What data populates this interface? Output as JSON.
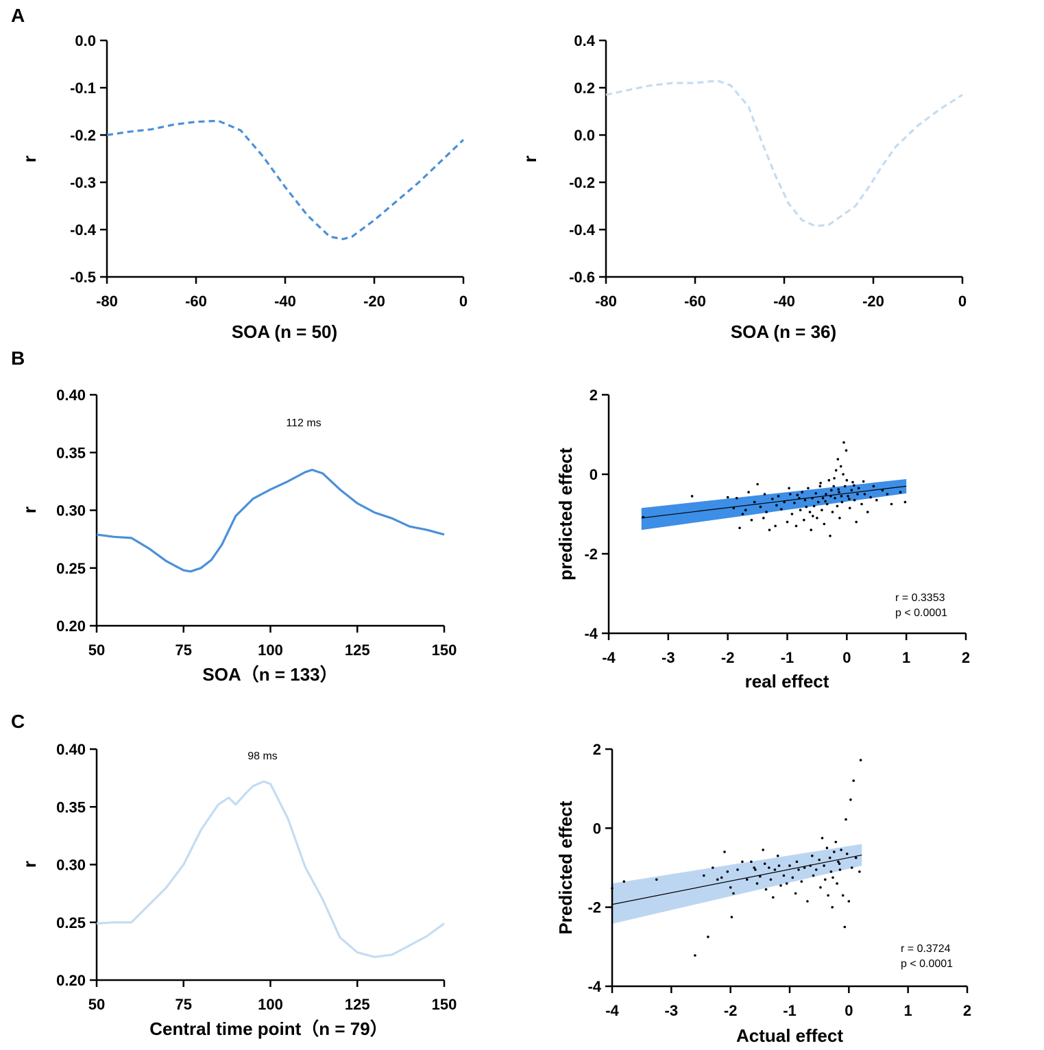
{
  "panels": {
    "a": "A",
    "b": "B",
    "c": "C"
  },
  "colors": {
    "medium_blue": "#4a90d9",
    "light_blue": "#c4dcf2",
    "band_blue": "#3d8ee6",
    "band_light": "#bcd6f2",
    "black": "#000000"
  },
  "chart_data": [
    {
      "id": "a-left",
      "type": "line",
      "dashed": true,
      "color": "#4a90d9",
      "xlabel": "SOA (n = 50)",
      "ylabel": "r",
      "xlim": [
        -80,
        0
      ],
      "ylim": [
        -0.5,
        0.0
      ],
      "xticks": [
        -80,
        -60,
        -40,
        -20,
        0
      ],
      "xtick_labels": [
        "-80",
        "-60",
        "-40",
        "-20",
        "0"
      ],
      "yticks": [
        -0.5,
        -0.4,
        -0.3,
        -0.2,
        -0.1,
        0.0
      ],
      "ytick_labels": [
        "-0.5",
        "-0.4",
        "-0.3",
        "-0.2",
        "-0.1",
        "0.0"
      ],
      "series": [
        {
          "name": "r",
          "x": [
            -80,
            -75,
            -70,
            -65,
            -60,
            -55,
            -50,
            -45,
            -40,
            -35,
            -30,
            -27,
            -25,
            -20,
            -15,
            -10,
            -5,
            0
          ],
          "y": [
            -0.2,
            -0.193,
            -0.188,
            -0.178,
            -0.172,
            -0.17,
            -0.19,
            -0.245,
            -0.31,
            -0.37,
            -0.415,
            -0.42,
            -0.415,
            -0.38,
            -0.34,
            -0.3,
            -0.255,
            -0.21
          ]
        }
      ]
    },
    {
      "id": "a-right",
      "type": "line",
      "dashed": true,
      "color": "#c4dcf2",
      "xlabel": "SOA (n = 36)",
      "ylabel": "r",
      "xlim": [
        -80,
        0
      ],
      "ylim": [
        -0.6,
        0.4
      ],
      "xticks": [
        -80,
        -60,
        -40,
        -20,
        0
      ],
      "xtick_labels": [
        "-80",
        "-60",
        "-40",
        "-20",
        "0"
      ],
      "yticks": [
        -0.6,
        -0.4,
        -0.2,
        0.0,
        0.2,
        0.4
      ],
      "ytick_labels": [
        "-0.6",
        "-0.4",
        "-0.2",
        "0.0",
        "0.2",
        "0.4"
      ],
      "series": [
        {
          "name": "r",
          "x": [
            -80,
            -75,
            -70,
            -65,
            -60,
            -55,
            -52,
            -48,
            -45,
            -42,
            -39,
            -36,
            -33,
            -30,
            -27,
            -24,
            -21,
            -18,
            -15,
            -10,
            -5,
            0
          ],
          "y": [
            0.17,
            0.19,
            0.21,
            0.22,
            0.22,
            0.23,
            0.21,
            0.12,
            -0.03,
            -0.17,
            -0.29,
            -0.36,
            -0.385,
            -0.38,
            -0.34,
            -0.3,
            -0.22,
            -0.13,
            -0.05,
            0.04,
            0.11,
            0.17
          ]
        }
      ]
    },
    {
      "id": "b-left",
      "type": "line",
      "dashed": false,
      "color": "#4a90d9",
      "xlabel": "SOA（n = 133）",
      "ylabel": "r",
      "xlim": [
        50,
        150
      ],
      "ylim": [
        0.2,
        0.4
      ],
      "xticks": [
        50,
        75,
        100,
        125,
        150
      ],
      "xtick_labels": [
        "50",
        "75",
        "100",
        "125",
        "150"
      ],
      "yticks": [
        0.2,
        0.25,
        0.3,
        0.35,
        0.4
      ],
      "ytick_labels": [
        "0.20",
        "0.25",
        "0.30",
        "0.35",
        "0.40"
      ],
      "annotations": [
        {
          "text": "112 ms",
          "x": 110,
          "y": 0.38
        }
      ],
      "series": [
        {
          "name": "r",
          "x": [
            50,
            55,
            60,
            65,
            70,
            75,
            77,
            80,
            83,
            86,
            90,
            95,
            100,
            105,
            110,
            112,
            115,
            120,
            125,
            130,
            135,
            140,
            145,
            150
          ],
          "y": [
            0.279,
            0.277,
            0.276,
            0.267,
            0.256,
            0.248,
            0.247,
            0.25,
            0.257,
            0.27,
            0.295,
            0.31,
            0.318,
            0.325,
            0.333,
            0.335,
            0.332,
            0.318,
            0.306,
            0.298,
            0.293,
            0.286,
            0.283,
            0.279
          ]
        }
      ]
    },
    {
      "id": "b-right",
      "type": "scatter",
      "color": "#000000",
      "band_color": "#3d8ee6",
      "xlabel": "real effect",
      "ylabel": "predicted effect",
      "xlim": [
        -4,
        2
      ],
      "ylim": [
        -4,
        2
      ],
      "xticks": [
        -4,
        -3,
        -2,
        -1,
        0,
        1,
        2
      ],
      "xtick_labels": [
        "-4",
        "-3",
        "-2",
        "-1",
        "0",
        "1",
        "2"
      ],
      "yticks": [
        -4,
        -2,
        0,
        2
      ],
      "ytick_labels": [
        "-4",
        "-2",
        "0",
        "2"
      ],
      "stats": {
        "r": "r = 0.3353",
        "p": "p < 0.0001"
      },
      "regression": {
        "x0": -3.45,
        "x1": 1.0,
        "y0": -1.1,
        "y1": -0.3,
        "band0": [
          -1.4,
          -0.85
        ],
        "band1": [
          -0.48,
          -0.12
        ]
      },
      "points": [
        [
          -3.42,
          -1.08
        ],
        [
          -2.6,
          -0.55
        ],
        [
          -2.0,
          -0.58
        ],
        [
          -1.9,
          -0.85
        ],
        [
          -1.8,
          -1.35
        ],
        [
          -1.7,
          -0.9
        ],
        [
          -1.65,
          -0.45
        ],
        [
          -1.55,
          -0.7
        ],
        [
          -1.5,
          -0.25
        ],
        [
          -1.45,
          -0.82
        ],
        [
          -1.4,
          -1.1
        ],
        [
          -1.35,
          -0.95
        ],
        [
          -1.3,
          -1.4
        ],
        [
          -1.25,
          -0.62
        ],
        [
          -1.2,
          -1.3
        ],
        [
          -1.15,
          -0.55
        ],
        [
          -1.1,
          -0.88
        ],
        [
          -1.05,
          -0.7
        ],
        [
          -1.0,
          -1.2
        ],
        [
          -0.95,
          -0.5
        ],
        [
          -0.92,
          -1.0
        ],
        [
          -0.88,
          -0.72
        ],
        [
          -0.85,
          -1.3
        ],
        [
          -0.8,
          -0.6
        ],
        [
          -0.78,
          -0.9
        ],
        [
          -0.75,
          -0.45
        ],
        [
          -0.72,
          -1.15
        ],
        [
          -0.7,
          -0.65
        ],
        [
          -0.65,
          -0.35
        ],
        [
          -0.62,
          -0.95
        ],
        [
          -0.6,
          -1.4
        ],
        [
          -0.58,
          -0.6
        ],
        [
          -0.55,
          -0.8
        ],
        [
          -0.52,
          -0.48
        ],
        [
          -0.5,
          -1.1
        ],
        [
          -0.48,
          -0.7
        ],
        [
          -0.45,
          -0.3
        ],
        [
          -0.42,
          -0.9
        ],
        [
          -0.4,
          -0.6
        ],
        [
          -0.38,
          -1.25
        ],
        [
          -0.35,
          -0.5
        ],
        [
          -0.33,
          -0.75
        ],
        [
          -0.3,
          -0.15
        ],
        [
          -0.28,
          -1.55
        ],
        [
          -0.26,
          -0.4
        ],
        [
          -0.24,
          -0.95
        ],
        [
          -0.22,
          -0.3
        ],
        [
          -0.2,
          -0.6
        ],
        [
          -0.18,
          0.1
        ],
        [
          -0.16,
          -0.8
        ],
        [
          -0.15,
          0.38
        ],
        [
          -0.13,
          -0.45
        ],
        [
          -0.12,
          -1.1
        ],
        [
          -0.1,
          0.2
        ],
        [
          -0.08,
          -0.7
        ],
        [
          -0.06,
          0.0
        ],
        [
          -0.05,
          0.8
        ],
        [
          -0.03,
          -0.3
        ],
        [
          -0.01,
          0.6
        ],
        [
          0.02,
          -0.55
        ],
        [
          0.05,
          -0.85
        ],
        [
          0.08,
          -0.4
        ],
        [
          0.1,
          -0.2
        ],
        [
          0.13,
          -0.65
        ],
        [
          0.16,
          -1.2
        ],
        [
          0.2,
          -0.35
        ],
        [
          0.25,
          -0.75
        ],
        [
          0.3,
          -0.5
        ],
        [
          0.35,
          -0.95
        ],
        [
          0.45,
          -0.3
        ],
        [
          0.6,
          -0.4
        ],
        [
          0.75,
          -0.75
        ],
        [
          0.9,
          -0.45
        ],
        [
          0.98,
          -0.7
        ],
        [
          -1.85,
          -0.6
        ],
        [
          -1.75,
          -1.0
        ],
        [
          -1.6,
          -1.15
        ],
        [
          -1.38,
          -0.5
        ],
        [
          -1.18,
          -0.78
        ],
        [
          -0.97,
          -0.35
        ],
        [
          -0.83,
          -0.52
        ],
        [
          -0.68,
          -0.82
        ],
        [
          -0.57,
          -1.05
        ],
        [
          -0.44,
          -0.22
        ],
        [
          -0.36,
          -0.68
        ],
        [
          -0.27,
          -0.55
        ],
        [
          -0.21,
          -0.1
        ],
        [
          -0.14,
          -0.38
        ],
        [
          -0.09,
          -0.55
        ],
        [
          0.0,
          -0.15
        ],
        [
          0.04,
          -0.62
        ],
        [
          0.12,
          -0.28
        ],
        [
          0.18,
          -0.5
        ],
        [
          0.28,
          -0.18
        ],
        [
          0.4,
          -0.58
        ],
        [
          0.5,
          -0.65
        ],
        [
          0.68,
          -0.5
        ]
      ]
    },
    {
      "id": "c-left",
      "type": "line",
      "dashed": false,
      "color": "#c4dcf2",
      "xlabel": "Central time point（n = 79）",
      "ylabel": "r",
      "xlim": [
        50,
        150
      ],
      "ylim": [
        0.2,
        0.4
      ],
      "xticks": [
        50,
        75,
        100,
        125,
        150
      ],
      "xtick_labels": [
        "50",
        "75",
        "100",
        "125",
        "150"
      ],
      "yticks": [
        0.2,
        0.25,
        0.3,
        0.35,
        0.4
      ],
      "ytick_labels": [
        "0.20",
        "0.25",
        "0.30",
        "0.35",
        "0.40"
      ],
      "annotations": [
        {
          "text": "98 ms",
          "x": 98,
          "y": 0.38
        }
      ],
      "series": [
        {
          "name": "r",
          "x": [
            50,
            55,
            60,
            65,
            70,
            75,
            80,
            85,
            88,
            90,
            93,
            95,
            98,
            100,
            105,
            110,
            115,
            120,
            125,
            130,
            135,
            140,
            145,
            150
          ],
          "y": [
            0.249,
            0.25,
            0.25,
            0.265,
            0.28,
            0.3,
            0.33,
            0.352,
            0.358,
            0.352,
            0.362,
            0.368,
            0.372,
            0.37,
            0.34,
            0.298,
            0.27,
            0.237,
            0.224,
            0.22,
            0.222,
            0.23,
            0.238,
            0.249
          ]
        }
      ]
    },
    {
      "id": "c-right",
      "type": "scatter",
      "color": "#000000",
      "band_color": "#bcd6f2",
      "xlabel": "Actual effect",
      "ylabel": "Predicted effect",
      "xlim": [
        -4,
        2
      ],
      "ylim": [
        -4,
        2
      ],
      "xticks": [
        -4,
        -3,
        -2,
        -1,
        0,
        1,
        2
      ],
      "xtick_labels": [
        "-4",
        "-3",
        "-2",
        "-1",
        "0",
        "1",
        "2"
      ],
      "yticks": [
        -4,
        -2,
        0,
        2
      ],
      "ytick_labels": [
        "-4",
        "-2",
        "0",
        "2"
      ],
      "stats": {
        "r": "r = 0.3724",
        "p": "p < 0.0001"
      },
      "regression": {
        "x0": -4.0,
        "x1": 0.22,
        "y0": -1.93,
        "y1": -0.68,
        "band0": [
          -2.42,
          -1.4
        ],
        "band1": [
          -0.95,
          -0.4
        ]
      },
      "points": [
        [
          -4.0,
          -1.52
        ],
        [
          -3.8,
          -1.35
        ],
        [
          -3.25,
          -1.3
        ],
        [
          -2.6,
          -3.22
        ],
        [
          -2.45,
          -1.2
        ],
        [
          -2.38,
          -2.75
        ],
        [
          -2.3,
          -1.0
        ],
        [
          -2.22,
          -1.3
        ],
        [
          -2.15,
          -1.25
        ],
        [
          -2.1,
          -0.6
        ],
        [
          -2.05,
          -1.1
        ],
        [
          -2.0,
          -1.5
        ],
        [
          -1.98,
          -2.25
        ],
        [
          -1.95,
          -1.65
        ],
        [
          -1.88,
          -1.05
        ],
        [
          -1.8,
          -0.85
        ],
        [
          -1.72,
          -1.3
        ],
        [
          -1.65,
          -0.85
        ],
        [
          -1.6,
          -1.0
        ],
        [
          -1.55,
          -1.4
        ],
        [
          -1.5,
          -1.22
        ],
        [
          -1.45,
          -0.55
        ],
        [
          -1.42,
          -0.9
        ],
        [
          -1.4,
          -1.55
        ],
        [
          -1.35,
          -1.0
        ],
        [
          -1.32,
          -1.3
        ],
        [
          -1.28,
          -1.75
        ],
        [
          -1.25,
          -1.05
        ],
        [
          -1.2,
          -0.7
        ],
        [
          -1.15,
          -1.45
        ],
        [
          -1.1,
          -1.2
        ],
        [
          -1.05,
          -1.4
        ],
        [
          -1.0,
          -0.95
        ],
        [
          -0.95,
          -1.25
        ],
        [
          -0.9,
          -1.65
        ],
        [
          -0.85,
          -1.05
        ],
        [
          -0.8,
          -1.35
        ],
        [
          -0.75,
          -1.0
        ],
        [
          -0.7,
          -1.85
        ],
        [
          -0.65,
          -0.95
        ],
        [
          -0.6,
          -1.2
        ],
        [
          -0.55,
          -1.05
        ],
        [
          -0.5,
          -0.8
        ],
        [
          -0.48,
          -1.5
        ],
        [
          -0.45,
          -0.25
        ],
        [
          -0.42,
          -0.95
        ],
        [
          -0.4,
          -1.3
        ],
        [
          -0.37,
          -0.5
        ],
        [
          -0.35,
          -1.7
        ],
        [
          -0.32,
          -0.75
        ],
        [
          -0.3,
          -1.1
        ],
        [
          -0.28,
          -2.0
        ],
        [
          -0.25,
          -0.6
        ],
        [
          -0.22,
          -0.35
        ],
        [
          -0.2,
          -1.4
        ],
        [
          -0.18,
          -0.85
        ],
        [
          -0.15,
          -1.05
        ],
        [
          -0.13,
          -0.55
        ],
        [
          -0.1,
          -1.7
        ],
        [
          -0.07,
          -2.5
        ],
        [
          -0.05,
          0.22
        ],
        [
          -0.03,
          -0.65
        ],
        [
          0.0,
          -1.85
        ],
        [
          0.03,
          0.72
        ],
        [
          0.05,
          -1.0
        ],
        [
          0.08,
          1.2
        ],
        [
          0.12,
          -0.75
        ],
        [
          0.18,
          -1.1
        ],
        [
          0.2,
          1.72
        ],
        [
          -1.58,
          -1.05
        ],
        [
          -1.18,
          -0.95
        ],
        [
          -0.88,
          -0.85
        ],
        [
          -0.62,
          -0.7
        ],
        [
          -0.27,
          -1.25
        ],
        [
          -0.16,
          -0.9
        ]
      ]
    }
  ]
}
